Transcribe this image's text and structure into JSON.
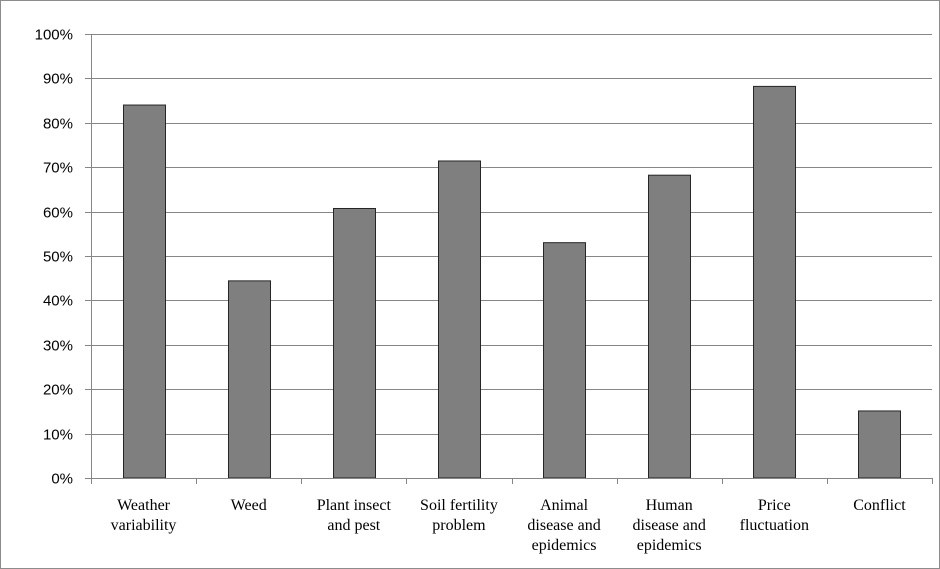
{
  "chart_data": {
    "type": "bar",
    "title": "",
    "xlabel": "",
    "ylabel": "",
    "categories": [
      [
        "Weather",
        "variability"
      ],
      [
        "Weed"
      ],
      [
        "Plant insect",
        "and pest"
      ],
      [
        "Soil fertility",
        "problem"
      ],
      [
        "Animal",
        "disease and",
        "epidemics"
      ],
      [
        "Human",
        "disease and",
        "epidemics"
      ],
      [
        "Price",
        "fluctuation"
      ],
      [
        "Conflict"
      ]
    ],
    "values": [
      84,
      44.4,
      60.7,
      71.4,
      53,
      68.2,
      88.2,
      15.1
    ],
    "ylim": [
      0,
      100
    ],
    "yticks": [
      0,
      10,
      20,
      30,
      40,
      50,
      60,
      70,
      80,
      90,
      100
    ],
    "ytick_labels": [
      "0%",
      "10%",
      "20%",
      "30%",
      "40%",
      "50%",
      "60%",
      "70%",
      "80%",
      "90%",
      "100%"
    ],
    "grid": true,
    "legend": "none",
    "bar_color": "#7f7f7f",
    "bar_edge_color": "#262626",
    "grid_color": "#868686"
  }
}
